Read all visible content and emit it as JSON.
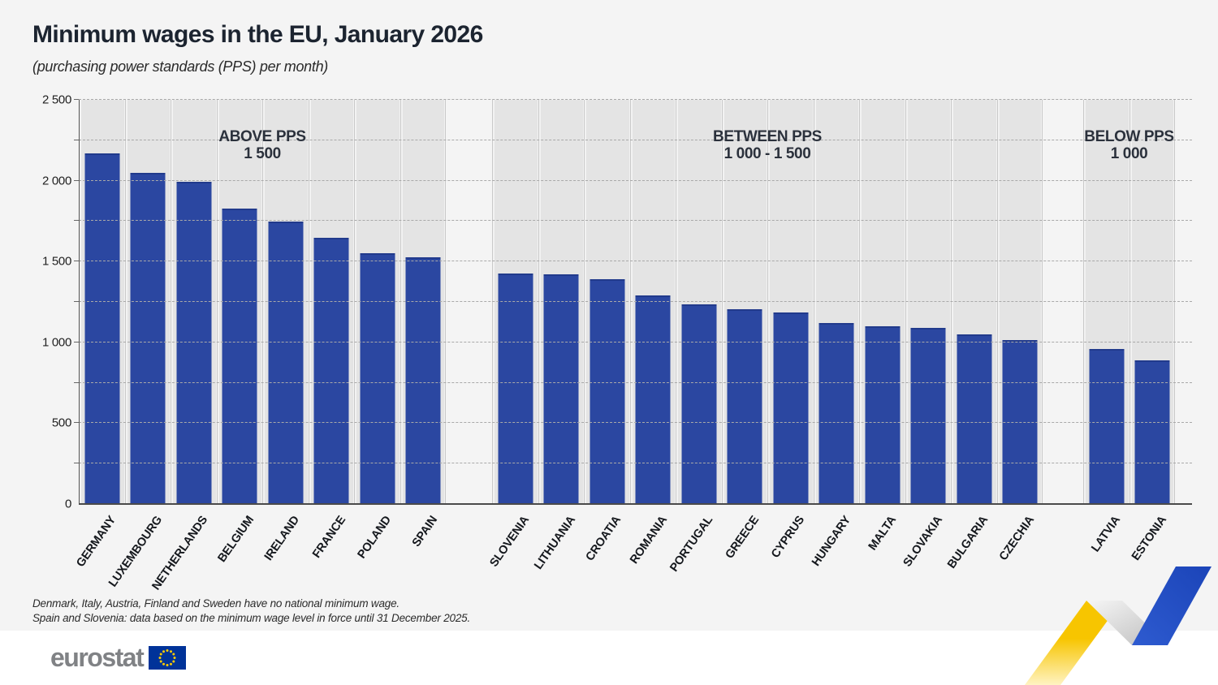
{
  "header": {
    "title": "Minimum wages in the EU, January 2026",
    "subtitle": "(purchasing power standards (PPS) per month)"
  },
  "footnotes": {
    "line1": "Denmark, Italy, Austria, Finland and Sweden have no national minimum wage.",
    "line2": "Spain and Slovenia: data based on the minimum wage level in force until 31 December 2025."
  },
  "logo": {
    "text": "eurostat",
    "flag_bg": "#003399",
    "star_color": "#ffcc00"
  },
  "colors": {
    "bar": "#2b47a1",
    "panel": "#e4e4e4",
    "page_bg": "#f4f4f4",
    "ribbon_yellow": "#ffd21e",
    "ribbon_blue": "#1e4fc4"
  },
  "chart_data": {
    "type": "bar",
    "title": "Minimum wages in the EU, January 2026",
    "ylabel": "PPS per month",
    "ylim": [
      0,
      2500
    ],
    "grid": "horizontal dashed every 250",
    "legend": "none",
    "yticks": [
      {
        "value": 0,
        "label": "0"
      },
      {
        "value": 500,
        "label": "500"
      },
      {
        "value": 1000,
        "label": "1 000"
      },
      {
        "value": 1500,
        "label": "1 500"
      },
      {
        "value": 2000,
        "label": "2 000"
      },
      {
        "value": 2500,
        "label": "2 500"
      }
    ],
    "groups": [
      {
        "heading_line1": "ABOVE PPS",
        "heading_line2": "1 500",
        "categories": [
          "GERMANY",
          "LUXEMBOURG",
          "NETHERLANDS",
          "BELGIUM",
          "IRELAND",
          "FRANCE",
          "POLAND",
          "SPAIN"
        ],
        "values": [
          2170,
          2050,
          1995,
          1825,
          1745,
          1645,
          1550,
          1525
        ]
      },
      {
        "heading_line1": "BETWEEN PPS",
        "heading_line2": "1 000 - 1 500",
        "categories": [
          "SLOVENIA",
          "LITHUANIA",
          "CROATIA",
          "ROMANIA",
          "PORTUGAL",
          "GREECE",
          "CYPRUS",
          "HUNGARY",
          "MALTA",
          "SLOVAKIA",
          "BULGARIA",
          "CZECHIA"
        ],
        "values": [
          1425,
          1420,
          1390,
          1290,
          1235,
          1205,
          1185,
          1120,
          1100,
          1090,
          1050,
          1015
        ]
      },
      {
        "heading_line1": "BELOW PPS",
        "heading_line2": "1 000",
        "categories": [
          "LATVIA",
          "ESTONIA"
        ],
        "values": [
          960,
          890
        ]
      }
    ]
  }
}
